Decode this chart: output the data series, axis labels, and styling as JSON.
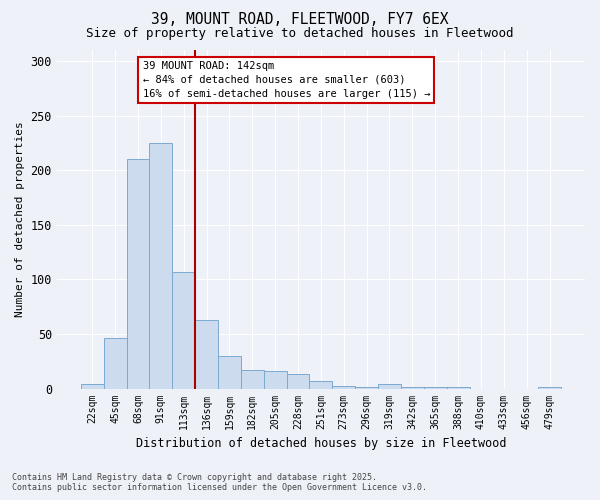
{
  "title1": "39, MOUNT ROAD, FLEETWOOD, FY7 6EX",
  "title2": "Size of property relative to detached houses in Fleetwood",
  "xlabel": "Distribution of detached houses by size in Fleetwood",
  "ylabel": "Number of detached properties",
  "categories": [
    "22sqm",
    "45sqm",
    "68sqm",
    "91sqm",
    "113sqm",
    "136sqm",
    "159sqm",
    "182sqm",
    "205sqm",
    "228sqm",
    "251sqm",
    "273sqm",
    "296sqm",
    "319sqm",
    "342sqm",
    "365sqm",
    "388sqm",
    "410sqm",
    "433sqm",
    "456sqm",
    "479sqm"
  ],
  "values": [
    4,
    46,
    210,
    225,
    107,
    63,
    30,
    17,
    16,
    13,
    7,
    2,
    1,
    4,
    1,
    1,
    1,
    0,
    0,
    0,
    1
  ],
  "bar_color": "#ccdcee",
  "bar_edge_color": "#7aaad0",
  "vline_x": 4.5,
  "vline_color": "#aa0000",
  "annotation_text": "39 MOUNT ROAD: 142sqm\n← 84% of detached houses are smaller (603)\n16% of semi-detached houses are larger (115) →",
  "annotation_box_color": "#cc0000",
  "background_color": "#eef2f8",
  "ylim": [
    0,
    310
  ],
  "yticks": [
    0,
    50,
    100,
    150,
    200,
    250,
    300
  ],
  "footer1": "Contains HM Land Registry data © Crown copyright and database right 2025.",
  "footer2": "Contains public sector information licensed under the Open Government Licence v3.0."
}
